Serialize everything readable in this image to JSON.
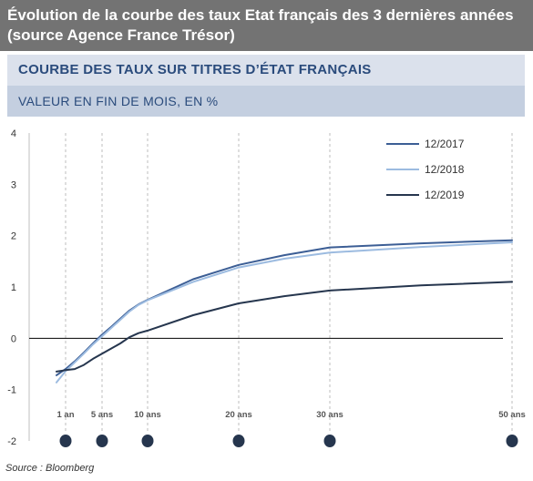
{
  "header": {
    "title": "Évolution de la courbe des taux Etat français des 3 dernières années (source Agence France Trésor)"
  },
  "chart_header": {
    "title": "COURBE DES TAUX SUR TITRES D’ÉTAT FRANÇAIS",
    "subtitle": "VALEUR EN FIN DE MOIS, EN %"
  },
  "source": "Source : Bloomberg",
  "chart_data": {
    "type": "line",
    "title": "COURBE DES TAUX SUR TITRES D’ÉTAT FRANÇAIS",
    "subtitle": "VALEUR EN FIN DE MOIS, EN %",
    "xlabel": "",
    "ylabel": "",
    "xlim": [
      -3,
      51
    ],
    "ylim": [
      -2,
      4
    ],
    "yticks": [
      -2,
      -1,
      0,
      1,
      2,
      3,
      4
    ],
    "xticks": [
      {
        "x": 1,
        "label": "1 an"
      },
      {
        "x": 5,
        "label": "5 ans"
      },
      {
        "x": 10,
        "label": "10 ans"
      },
      {
        "x": 20,
        "label": "20 ans"
      },
      {
        "x": 30,
        "label": "30 ans"
      },
      {
        "x": 50,
        "label": "50 ans"
      }
    ],
    "grid": "vertical dashed at x ticks",
    "legend_position": "top-right",
    "series": [
      {
        "name": "12/2017",
        "color": "#3c5e95",
        "x": [
          0,
          1,
          2,
          3,
          4,
          5,
          6,
          7,
          8,
          9,
          10,
          15,
          20,
          25,
          30,
          40,
          50
        ],
        "y": [
          -0.72,
          -0.6,
          -0.45,
          -0.28,
          -0.1,
          0.07,
          0.22,
          0.38,
          0.54,
          0.66,
          0.75,
          1.15,
          1.43,
          1.62,
          1.77,
          1.85,
          1.91
        ]
      },
      {
        "name": "12/2018",
        "color": "#9cbbe0",
        "x": [
          0,
          1,
          2,
          3,
          4,
          5,
          6,
          7,
          8,
          9,
          10,
          15,
          20,
          25,
          30,
          40,
          50
        ],
        "y": [
          -0.86,
          -0.64,
          -0.47,
          -0.3,
          -0.12,
          0.04,
          0.2,
          0.36,
          0.52,
          0.65,
          0.74,
          1.1,
          1.38,
          1.55,
          1.67,
          1.78,
          1.87
        ]
      },
      {
        "name": "12/2019",
        "color": "#26364e",
        "x": [
          0,
          1,
          2,
          3,
          4,
          5,
          6,
          7,
          8,
          9,
          10,
          15,
          20,
          25,
          30,
          40,
          50
        ],
        "y": [
          -0.65,
          -0.62,
          -0.6,
          -0.52,
          -0.4,
          -0.3,
          -0.2,
          -0.1,
          0.02,
          0.1,
          0.15,
          0.45,
          0.68,
          0.82,
          0.93,
          1.03,
          1.1
        ]
      }
    ]
  }
}
